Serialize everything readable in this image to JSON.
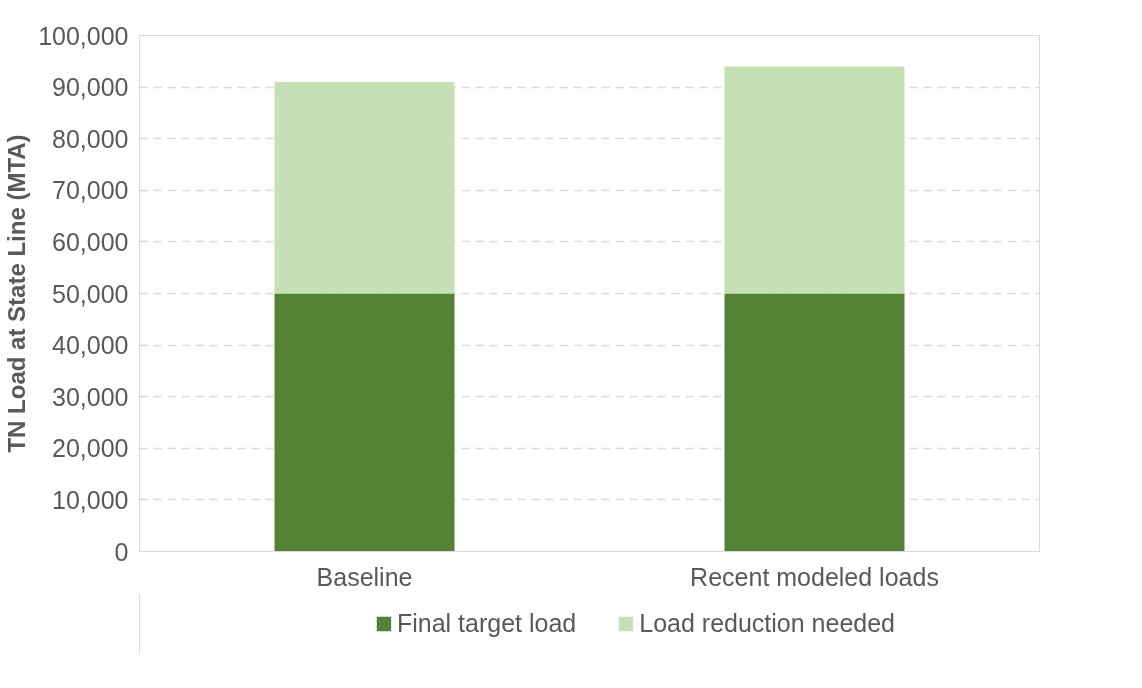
{
  "chart_data": {
    "type": "bar",
    "stacked": true,
    "ylabel": "TN Load at State Line (MTA)",
    "categories": [
      "Baseline",
      "Recent modeled loads"
    ],
    "series": [
      {
        "name": "Final target load",
        "color": "#548235",
        "values": [
          50000,
          50000
        ]
      },
      {
        "name": "Load reduction needed",
        "color": "#c5e0b4",
        "values": [
          41000,
          44000
        ]
      }
    ],
    "ylim": [
      0,
      100000
    ],
    "yticks": [
      {
        "value": 0,
        "label": "0"
      },
      {
        "value": 10000,
        "label": "10,000"
      },
      {
        "value": 20000,
        "label": "20,000"
      },
      {
        "value": 30000,
        "label": "30,000"
      },
      {
        "value": 40000,
        "label": "40,000"
      },
      {
        "value": 50000,
        "label": "50,000"
      },
      {
        "value": 60000,
        "label": "60,000"
      },
      {
        "value": 70000,
        "label": "70,000"
      },
      {
        "value": 80000,
        "label": "80,000"
      },
      {
        "value": 90000,
        "label": "90,000"
      },
      {
        "value": 100000,
        "label": "100,000"
      }
    ],
    "grid": "y",
    "legend": "bottom"
  }
}
